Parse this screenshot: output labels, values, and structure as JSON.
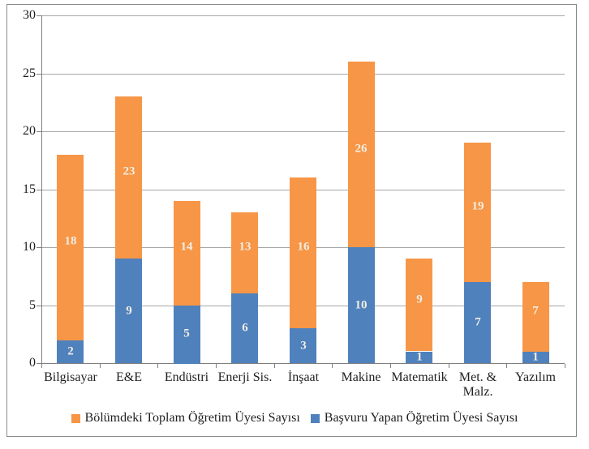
{
  "theme": {
    "background": "#ffffff",
    "border_color": "#8a8a8a",
    "gridline_color": "#a6a6a6",
    "axis_color": "#7f7f7f",
    "text_color": "#1f1f1f",
    "bar_label_color": "#f2ede3"
  },
  "chart_data": {
    "type": "bar",
    "stacked": true,
    "title": "",
    "xlabel": "",
    "ylabel": "",
    "categories": [
      "Bilgisayar",
      "E&E",
      "Endüstri",
      "Enerji Sis.",
      "İnşaat",
      "Makine",
      "Matematik",
      "Met. & Malz.",
      "Yazılım"
    ],
    "series": [
      {
        "name": "Bölümdeki Toplam Öğretim Üyesi Sayısı",
        "color": "#F79646",
        "values": [
          18,
          23,
          14,
          13,
          16,
          26,
          9,
          19,
          7
        ],
        "segment": "top",
        "labels": [
          "18",
          "23",
          "14",
          "13",
          "16",
          "26",
          "9",
          "19",
          "7"
        ]
      },
      {
        "name": "Başvuru Yapan Öğretim Üyesi Sayısı",
        "color": "#4F81BD",
        "values": [
          2,
          9,
          5,
          6,
          3,
          10,
          1,
          7,
          1
        ],
        "segment": "bottom",
        "labels": [
          "2",
          "9",
          "5",
          "6",
          "3",
          "10",
          "1",
          "7",
          "1"
        ]
      }
    ],
    "ylim": [
      0,
      30
    ],
    "yticks": [
      0,
      5,
      10,
      15,
      20,
      25,
      30
    ],
    "grid": true,
    "legend_position": "bottom",
    "bar_labels_shown": true
  }
}
